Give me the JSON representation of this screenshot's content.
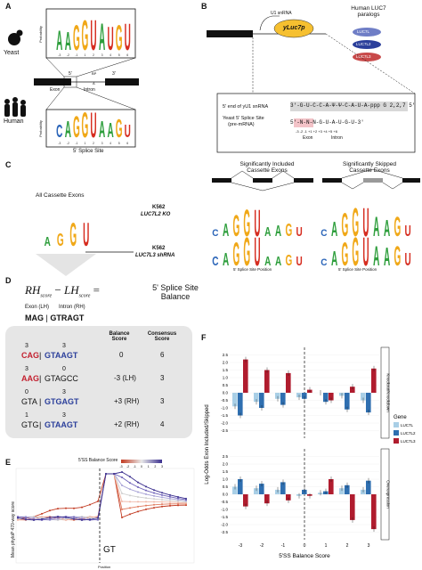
{
  "panels": {
    "A": "A",
    "B": "B",
    "C": "C",
    "D": "D",
    "E": "E",
    "F": "F"
  },
  "panel_a": {
    "yeast_label": "Yeast",
    "human_label": "Human",
    "axis_label": "Probability",
    "positions": [
      "-3",
      "-2",
      "-1",
      "1",
      "2",
      "3",
      "4",
      "5",
      "6"
    ],
    "five_prime": "5'",
    "three_prime": "3'",
    "exon": "Exon",
    "intron": "Intron",
    "bp": "BP",
    "bp_a": "A",
    "footer": "5' Splice Site",
    "yeast_seq": "AAGGUAUGU",
    "human_seq": "CAGGUAAGU",
    "colors": {
      "A": "#2e9e3c",
      "C": "#2a64b8",
      "G": "#f0a818",
      "U": "#d62d20"
    }
  },
  "panel_b": {
    "u1": "U1 snRNA",
    "yluc": "yLuc7p",
    "paralogs": "Human LUC7\nparalogs",
    "luc7l": "LUC7L",
    "luc7l2": "LUC7L2",
    "luc7l3": "LUC7L3",
    "row1_label": "5' end of yU1 snRNA",
    "row1_seq": "3'-G-U-C-C-A-Ψ-Ψ-C-A-U-A-ppp G 2,2,7 5'",
    "row2_label": "Yeast 5' Splice Site",
    "row2_sub": "(pre-mRNA)",
    "row2_seq": "5'-N-N-N-G-U-A-U-G-U-3'",
    "positions": "-3 -2 -1 +1 +2 +3 +4 +5 +6",
    "exon": "Exon",
    "intron": "Intron",
    "colors": {
      "luc7l": "#6f7ec6",
      "luc7l2": "#2b3f9b",
      "luc7l3": "#c84a4a",
      "yluc": "#f6c030"
    }
  },
  "panel_c": {
    "all_title": "All Cassette Exons",
    "inc_title": "Significantly Included\nCassette Exons",
    "skip_title": "Significantly Skipped\nCassette Exons",
    "k562_1": "K562",
    "ko_1": "LUC7L2 KO",
    "k562_2": "K562",
    "ko_2": "LUC7L3 shRNA",
    "axis_x": "5' Splice Site Position",
    "bits": "Bits",
    "seq_all": "AGGU",
    "seq_logo": "CAGGUAAGU"
  },
  "panel_d": {
    "eq_rh": "RH",
    "eq_score": "score",
    "eq_lh": "LH",
    "eq_minus": "−",
    "eq_equals": "=",
    "eq_result": "5' Splice Site\nBalance",
    "exon_lh": "Exon (LH)",
    "intron_rh": "Intron (RH)",
    "consensus_exon": "MAG",
    "consensus_intron": "GTRAGT",
    "col_balance": "Balance\nScore",
    "col_consensus": "Consensus\nScore",
    "rows": [
      {
        "lh": "3",
        "rh": "3",
        "exon": "CAG",
        "intron": "GTAAGT",
        "balance": "0",
        "consensus": "6"
      },
      {
        "lh": "3",
        "rh": "0",
        "exon": "AAG",
        "intron": "GTAGCC",
        "balance": "-3 (LH)",
        "consensus": "3"
      },
      {
        "lh": "0",
        "rh": "3",
        "exon": "GTA",
        "intron": "GTGAGT",
        "balance": "+3 (RH)",
        "consensus": "3"
      },
      {
        "lh": "1",
        "rh": "3",
        "exon": "GTG",
        "intron": "GTAAGT",
        "balance": "+2 (RH)",
        "consensus": "4"
      }
    ]
  },
  "panel_e": {
    "legend_title": "5'SS Balance Score",
    "legend_ticks": [
      "-3",
      "-2",
      "-1",
      "0",
      "1",
      "2",
      "3"
    ],
    "ylabel": "Mean phyloP 470-way score",
    "xlabel": "Position",
    "gt": "GT"
  },
  "chart_data": {
    "type": "bar",
    "xlabel": "5'SS Balance Score",
    "ylabel": "Log-Odds Exon Included/Skipped",
    "categories": [
      -3,
      -2,
      -1,
      0,
      1,
      2,
      3
    ],
    "legend_title": "Gene",
    "facets": [
      "Knockout/Knockdown",
      "Overexpression"
    ],
    "ylim": [
      -3,
      3
    ],
    "yticks": [
      2.5,
      2.0,
      1.5,
      1.0,
      0.5,
      0.0,
      -0.5,
      -1.0,
      -1.5,
      -2.0,
      -2.5
    ],
    "series": [
      {
        "name": "LUC7L",
        "color": "#a9cfe6",
        "knockout": [
          -0.9,
          -0.6,
          -0.4,
          -0.3,
          0.0,
          -0.2,
          -0.5
        ],
        "overexpression": [
          0.5,
          0.4,
          0.3,
          -0.1,
          0.1,
          0.4,
          0.3
        ]
      },
      {
        "name": "LUC7L2",
        "color": "#2f6fb0",
        "knockout": [
          -1.5,
          -1.0,
          -0.8,
          -0.4,
          -0.6,
          -1.1,
          -1.3
        ],
        "overexpression": [
          1.0,
          0.7,
          0.8,
          0.3,
          0.2,
          0.6,
          0.9
        ]
      },
      {
        "name": "LUC7L3",
        "color": "#b01c2e",
        "knockout": [
          2.2,
          1.5,
          1.3,
          0.2,
          -0.5,
          0.4,
          1.6
        ],
        "overexpression": [
          -0.8,
          -0.6,
          -0.4,
          -0.1,
          1.0,
          -1.7,
          -2.3
        ]
      }
    ]
  }
}
